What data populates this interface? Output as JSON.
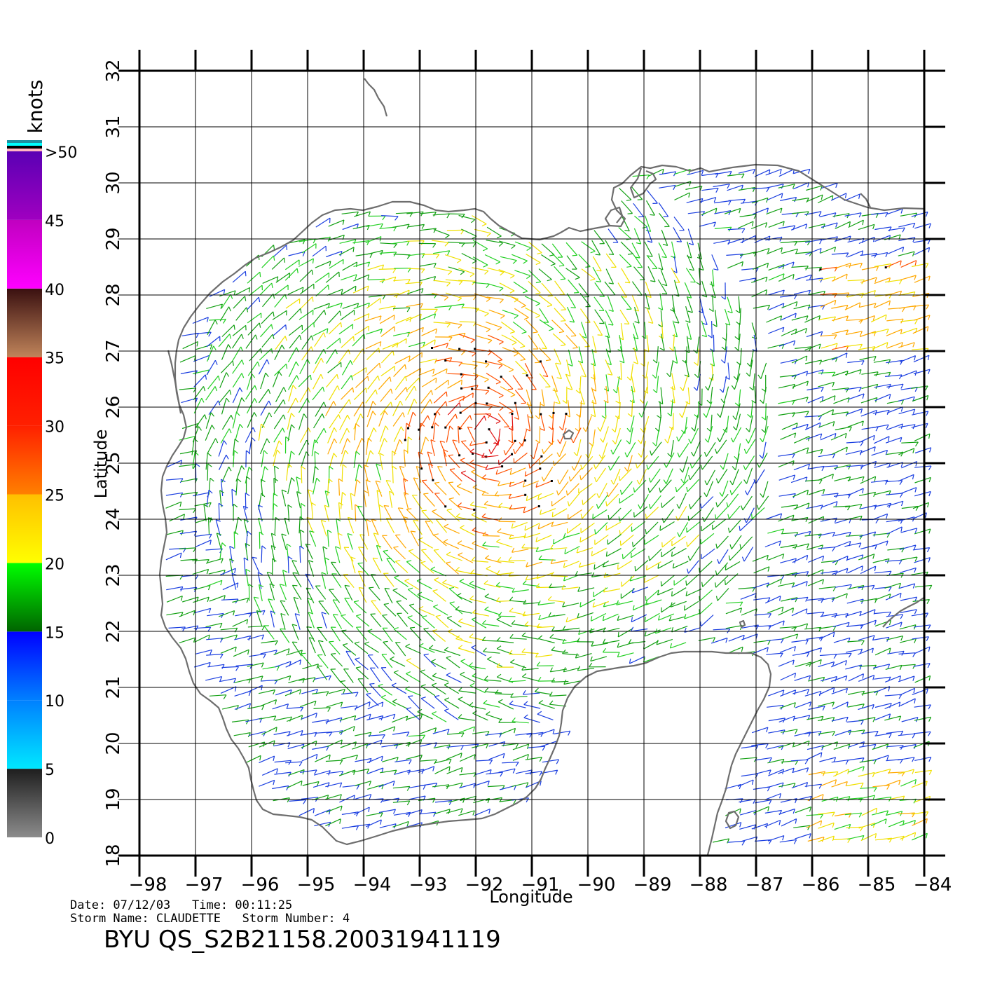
{
  "chart_data": {
    "type": "scatter",
    "title": "",
    "xlabel": "Longitude",
    "ylabel": "Latitude",
    "xlim": [
      -98,
      -84
    ],
    "ylim": [
      18,
      32
    ],
    "x_ticks": [
      "−98",
      "−97",
      "−96",
      "−95",
      "−94",
      "−93",
      "−92",
      "−91",
      "−90",
      "−89",
      "−88",
      "−87",
      "−86",
      "−85",
      "−84"
    ],
    "y_ticks": [
      "18",
      "19",
      "20",
      "21",
      "22",
      "23",
      "24",
      "25",
      "26",
      "27",
      "28",
      "29",
      "30",
      "31",
      "32"
    ],
    "grid": true,
    "series": [],
    "colorbar": {
      "label": "knots",
      "range": [
        0,
        50
      ],
      "ticks": [
        {
          "value": 0,
          "text": "0"
        },
        {
          "value": 5,
          "text": "5"
        },
        {
          "value": 10,
          "text": "10"
        },
        {
          "value": 15,
          "text": "15"
        },
        {
          "value": 20,
          "text": "20"
        },
        {
          "value": 25,
          "text": "25"
        },
        {
          "value": 30,
          "text": "30"
        },
        {
          "value": 35,
          "text": "35"
        },
        {
          "value": 40,
          "text": "40"
        },
        {
          "value": 45,
          "text": "45"
        },
        {
          "value": 50,
          "text": ">50"
        }
      ],
      "bands": [
        {
          "from": 0,
          "to": 5,
          "colors": [
            "#8c8c8c",
            "#1e1e1e"
          ]
        },
        {
          "from": 5,
          "to": 10,
          "colors": [
            "#00e8ff",
            "#0080ff"
          ]
        },
        {
          "from": 10,
          "to": 15,
          "colors": [
            "#0080ff",
            "#0000ff"
          ]
        },
        {
          "from": 15,
          "to": 20,
          "colors": [
            "#006400",
            "#00ff00"
          ]
        },
        {
          "from": 20,
          "to": 25,
          "colors": [
            "#ffff00",
            "#ffc000"
          ]
        },
        {
          "from": 25,
          "to": 30,
          "colors": [
            "#ff8000",
            "#ff2000"
          ]
        },
        {
          "from": 30,
          "to": 35,
          "colors": [
            "#ff2000",
            "#ff0000"
          ]
        },
        {
          "from": 35,
          "to": 40,
          "colors": [
            "#c0845a",
            "#3a1010"
          ]
        },
        {
          "from": 40,
          "to": 45,
          "colors": [
            "#ff00ff",
            "#c000c0"
          ]
        },
        {
          "from": 45,
          "to": 50,
          "colors": [
            "#a000c0",
            "#5a00b4"
          ]
        }
      ],
      "top_strip": [
        "#1e90a0",
        "#00ffff",
        "#000000",
        "#ffb6c1"
      ]
    }
  },
  "footer": {
    "date_line": "Date: 07/12/03   Time: 00:11:25",
    "storm_line": "Storm Name: CLAUDETTE   Storm Number: 4",
    "product_id": "BYU QS_S2B21158.20031941119"
  }
}
